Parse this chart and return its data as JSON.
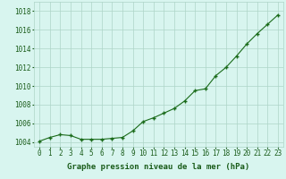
{
  "hours": [
    0,
    1,
    2,
    3,
    4,
    5,
    6,
    7,
    8,
    9,
    10,
    11,
    12,
    13,
    14,
    15,
    16,
    17,
    18,
    19,
    20,
    21,
    22,
    23
  ],
  "pressure": [
    1004.1,
    1004.5,
    1004.8,
    1004.7,
    1004.3,
    1004.3,
    1004.3,
    1004.4,
    1004.5,
    1005.2,
    1006.2,
    1006.6,
    1007.1,
    1007.6,
    1008.4,
    1009.5,
    1009.7,
    1011.1,
    1012.0,
    1013.2,
    1014.5,
    1015.6,
    1016.6,
    1017.6
  ],
  "line_color": "#1a6b1a",
  "marker_color": "#1a6b1a",
  "bg_color": "#d8f5ef",
  "grid_color": "#aed4c8",
  "xlabel": "Graphe pression niveau de la mer (hPa)",
  "ylabel_ticks": [
    1004,
    1006,
    1008,
    1010,
    1012,
    1014,
    1016,
    1018
  ],
  "xlim": [
    -0.5,
    23.5
  ],
  "ylim": [
    1003.5,
    1019.0
  ],
  "title_color": "#1a5c1a",
  "xlabel_fontsize": 6.5,
  "tick_fontsize": 5.5
}
